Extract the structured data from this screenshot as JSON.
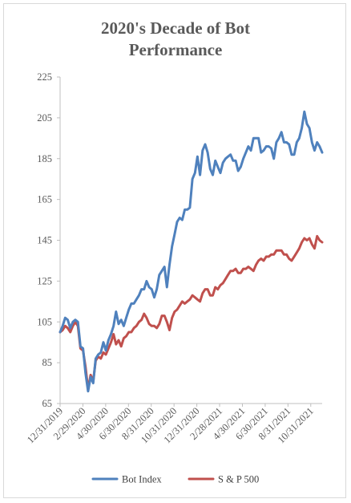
{
  "chart_data": {
    "type": "line",
    "title": [
      "2020's Decade of Bot",
      "Performance"
    ],
    "xlabel": "",
    "ylabel": "",
    "ylim": [
      65,
      225
    ],
    "yticks": [
      65,
      85,
      105,
      125,
      145,
      165,
      185,
      205,
      225
    ],
    "xtick_labels": [
      "12/31/2019",
      "2/29/2020",
      "4/30/2020",
      "6/30/2020",
      "8/31/2020",
      "10/31/2020",
      "12/31/2020",
      "2/28/2021",
      "4/30/2021",
      "6/30/2021",
      "8/31/2021",
      "10/31/2021"
    ],
    "grid": false,
    "legend_position": "bottom",
    "series": [
      {
        "name": "Bot Index",
        "color": "#4f81bd",
        "values": [
          100,
          103,
          107,
          106,
          102,
          105,
          106,
          105,
          93,
          92,
          80,
          71,
          78,
          75,
          87,
          89,
          90,
          95,
          91,
          96,
          99,
          103,
          110,
          104,
          106,
          103,
          107,
          111,
          114,
          114,
          116,
          118,
          121,
          121,
          125,
          122,
          121,
          117,
          121,
          128,
          130,
          132,
          122,
          133,
          142,
          148,
          154,
          156,
          155,
          160,
          160,
          161,
          175,
          178,
          186,
          177,
          189,
          192,
          188,
          180,
          177,
          184,
          181,
          178,
          183,
          185,
          186,
          187,
          184,
          184,
          179,
          181,
          185,
          188,
          191,
          189,
          195,
          195,
          195,
          188,
          189,
          191,
          191,
          190,
          185,
          193,
          195,
          198,
          193,
          193,
          192,
          187,
          187,
          193,
          195,
          200,
          208,
          202,
          200,
          193,
          189,
          193,
          191,
          188
        ]
      },
      {
        "name": "S & P 500",
        "color": "#c0504d",
        "values": [
          100,
          101,
          103,
          102,
          100,
          103,
          105,
          103,
          92,
          91,
          83,
          72,
          79,
          76,
          86,
          88,
          87,
          90,
          89,
          92,
          95,
          99,
          94,
          96,
          93,
          97,
          98,
          100,
          100,
          102,
          103,
          105,
          106,
          109,
          107,
          104,
          103,
          103,
          102,
          104,
          108,
          108,
          105,
          101,
          107,
          110,
          111,
          113,
          115,
          114,
          115,
          116,
          118,
          117,
          116,
          115,
          119,
          121,
          121,
          118,
          118,
          122,
          121,
          123,
          124,
          126,
          128,
          130,
          130,
          131,
          129,
          129,
          131,
          131,
          132,
          131,
          130,
          133,
          135,
          136,
          135,
          137,
          137,
          138,
          138,
          140,
          140,
          140,
          138,
          138,
          136,
          135,
          137,
          139,
          141,
          144,
          146,
          145,
          146,
          143,
          141,
          147,
          145,
          144
        ]
      }
    ]
  }
}
